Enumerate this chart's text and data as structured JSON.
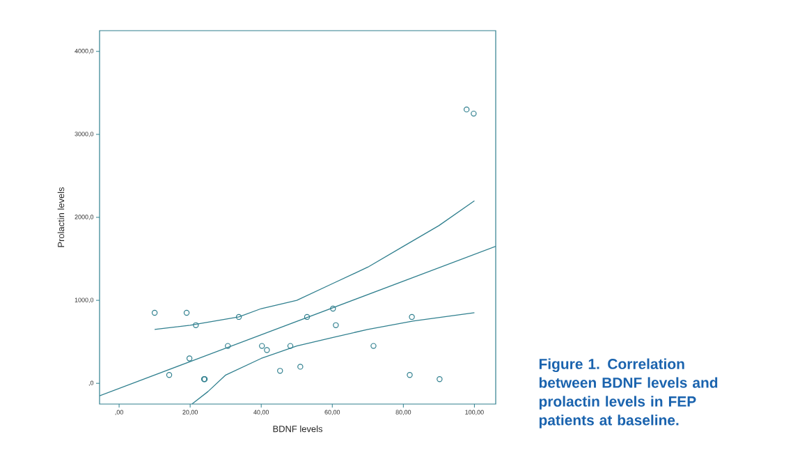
{
  "chart_data": {
    "type": "scatter",
    "xlabel": "BDNF levels",
    "ylabel": "Prolactin  levels",
    "xlim": [
      -5.5,
      106
    ],
    "ylim": [
      -250,
      4250
    ],
    "xticks": [
      {
        "value": 0,
        "label": ",00"
      },
      {
        "value": 20,
        "label": "20,00"
      },
      {
        "value": 40,
        "label": "40,00"
      },
      {
        "value": 60,
        "label": "60,00"
      },
      {
        "value": 80,
        "label": "80,00"
      },
      {
        "value": 100,
        "label": "100,00"
      }
    ],
    "yticks": [
      {
        "value": 0,
        "label": ",0"
      },
      {
        "value": 1000,
        "label": "1000,0"
      },
      {
        "value": 2000,
        "label": "2000,0"
      },
      {
        "value": 3000,
        "label": "3000,0"
      },
      {
        "value": 4000,
        "label": "4000,0"
      }
    ],
    "marker": "circle",
    "annotations": [
      "Figure 1. Correlation between BDNF levels and prolactin levels in FEP patients at baseline."
    ],
    "series": [
      {
        "color": "#2f7f8e",
        "x": [
          10.0,
          19.0,
          21.6,
          33.7,
          14.1,
          19.8,
          23.9,
          24.1,
          30.6,
          40.2,
          41.6,
          45.3,
          48.2,
          51.0,
          52.9,
          60.2,
          61.0,
          71.6,
          82.4,
          81.8,
          90.2,
          97.8,
          99.8
        ],
        "values": [
          850,
          850,
          700,
          800,
          100,
          300,
          50,
          50,
          450,
          450,
          400,
          150,
          450,
          200,
          800,
          900,
          700,
          450,
          800,
          100,
          50,
          3300,
          3250
        ]
      },
      {
        "type": "line",
        "color": "#2f7f8e",
        "marker": "none",
        "x": [
          -5.5,
          106
        ],
        "values": [
          -150,
          1650
        ]
      },
      {
        "type": "line",
        "color": "#2f7f8e",
        "marker": "none",
        "x": [
          10,
          20,
          33.7,
          40,
          50,
          60,
          70,
          80,
          90,
          100
        ],
        "values": [
          650,
          700,
          800,
          900,
          1000,
          1200,
          1400,
          1650,
          1900,
          2200
        ]
      },
      {
        "type": "line",
        "color": "#2f7f8e",
        "marker": "none",
        "x": [
          20.5,
          25,
          30,
          40,
          50,
          60,
          70,
          82.7,
          100
        ],
        "values": [
          -250,
          -100,
          100,
          300,
          450,
          550,
          650,
          750,
          850
        ]
      }
    ]
  }
}
